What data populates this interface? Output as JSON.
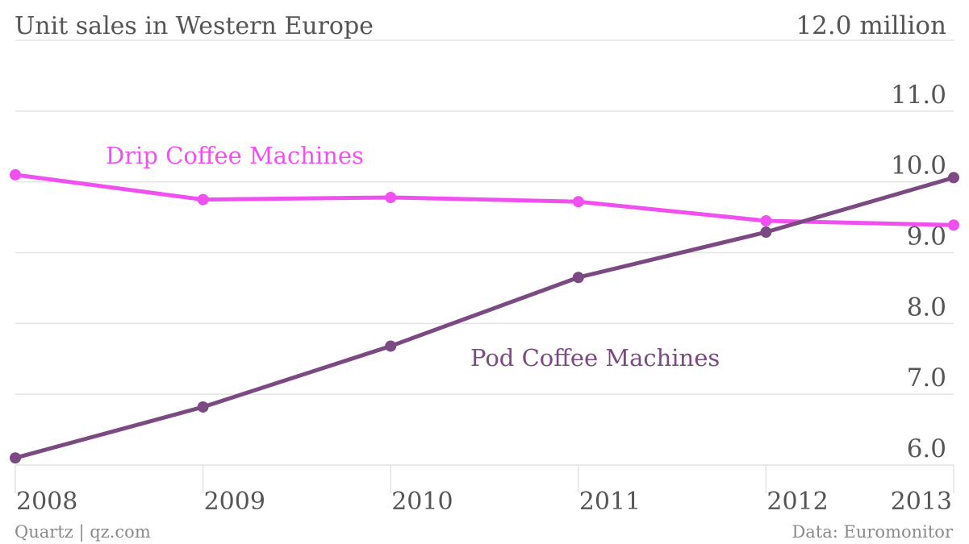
{
  "title": "Unit sales in Western Europe",
  "top_tick_label": "12.0 million",
  "source_left": "Quartz | qz.com",
  "source_right": "Data: Euromonitor",
  "colors": {
    "drip": "#f050f0",
    "pod": "#7b4a82",
    "grid": "#e2e2e2",
    "text": "#555555"
  },
  "chart_data": {
    "type": "line",
    "x": [
      "2008",
      "2009",
      "2010",
      "2011",
      "2012",
      "2013"
    ],
    "ylim": [
      6.0,
      12.0
    ],
    "yticks": [
      "6.0",
      "7.0",
      "8.0",
      "9.0",
      "10.0",
      "11.0",
      "12.0 million"
    ],
    "grid": true,
    "series": [
      {
        "name": "Drip Coffee Machines",
        "color": "#f050f0",
        "values": [
          10.1,
          9.75,
          9.78,
          9.72,
          9.45,
          9.39
        ]
      },
      {
        "name": "Pod Coffee Machines",
        "color": "#7b4a82",
        "values": [
          6.1,
          6.82,
          7.68,
          8.65,
          9.29,
          10.06
        ]
      }
    ]
  }
}
